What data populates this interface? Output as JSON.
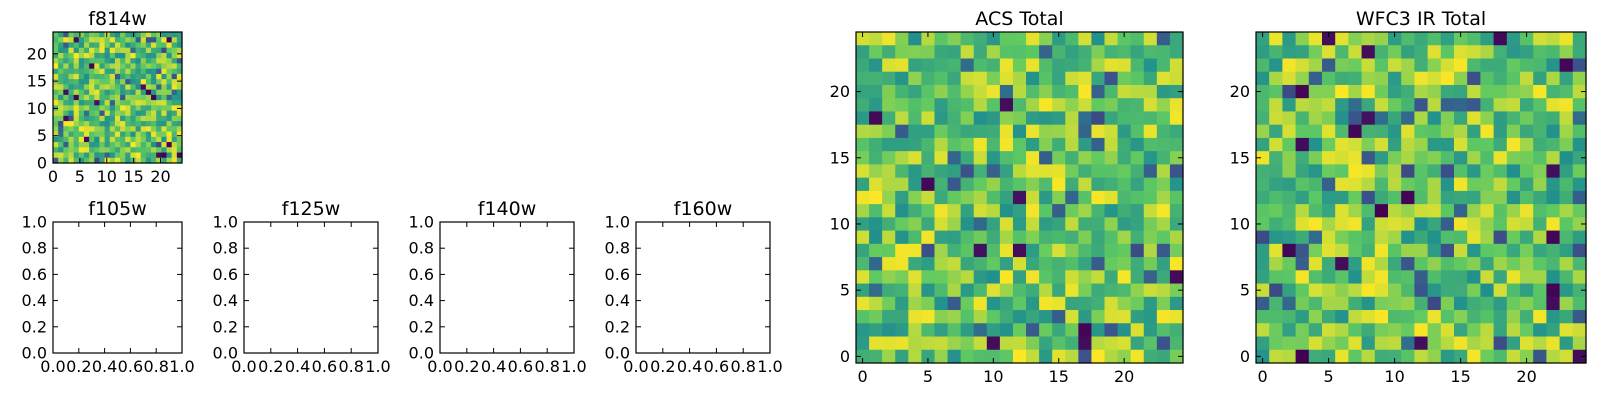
{
  "chart_data": [
    {
      "type": "heatmap",
      "title": "f814w",
      "grid_size": 25,
      "xlim": [
        0,
        24
      ],
      "ylim": [
        0,
        24
      ],
      "xticks": [
        "0",
        "5",
        "10",
        "15",
        "20"
      ],
      "yticks": [
        "0",
        "5",
        "10",
        "15",
        "20"
      ],
      "colormap": "viridis",
      "values": "random 25x25 pixel intensities (noise image)"
    },
    {
      "type": "empty",
      "title": "f105w",
      "xlim": [
        0.0,
        1.0
      ],
      "ylim": [
        0.0,
        1.0
      ],
      "xticks": [
        "0.0",
        "0.2",
        "0.4",
        "0.6",
        "0.8",
        "1.0"
      ],
      "yticks": [
        "0.0",
        "0.2",
        "0.4",
        "0.6",
        "0.8",
        "1.0"
      ]
    },
    {
      "type": "empty",
      "title": "f125w",
      "xlim": [
        0.0,
        1.0
      ],
      "ylim": [
        0.0,
        1.0
      ],
      "xticks": [
        "0.0",
        "0.2",
        "0.4",
        "0.6",
        "0.8",
        "1.0"
      ],
      "yticks": [
        "0.0",
        "0.2",
        "0.4",
        "0.6",
        "0.8",
        "1.0"
      ]
    },
    {
      "type": "empty",
      "title": "f140w",
      "xlim": [
        0.0,
        1.0
      ],
      "ylim": [
        0.0,
        1.0
      ],
      "xticks": [
        "0.0",
        "0.2",
        "0.4",
        "0.6",
        "0.8",
        "1.0"
      ],
      "yticks": [
        "0.0",
        "0.2",
        "0.4",
        "0.6",
        "0.8",
        "1.0"
      ]
    },
    {
      "type": "empty",
      "title": "f160w",
      "xlim": [
        0.0,
        1.0
      ],
      "ylim": [
        0.0,
        1.0
      ],
      "xticks": [
        "0.0",
        "0.2",
        "0.4",
        "0.6",
        "0.8",
        "1.0"
      ],
      "yticks": [
        "0.0",
        "0.2",
        "0.4",
        "0.6",
        "0.8",
        "1.0"
      ]
    },
    {
      "type": "heatmap",
      "title": "ACS Total",
      "grid_size": 25,
      "xlim": [
        -0.5,
        24.5
      ],
      "ylim": [
        -0.5,
        24.5
      ],
      "xticks": [
        "0",
        "5",
        "10",
        "15",
        "20"
      ],
      "yticks": [
        "0",
        "5",
        "10",
        "15",
        "20"
      ],
      "colormap": "viridis",
      "values": "random 25x25 pixel intensities (noise image)"
    },
    {
      "type": "heatmap",
      "title": "WFC3 IR Total",
      "grid_size": 25,
      "xlim": [
        -0.5,
        24.5
      ],
      "ylim": [
        -0.5,
        24.5
      ],
      "xticks": [
        "0",
        "5",
        "10",
        "15",
        "20"
      ],
      "yticks": [
        "0",
        "5",
        "10",
        "15",
        "20"
      ],
      "colormap": "viridis",
      "values": "random 25x25 pixel intensities (noise image)"
    }
  ],
  "colors": {
    "viridis": [
      "#440154",
      "#3b528b",
      "#21908d",
      "#5dc863",
      "#fde725"
    ],
    "axis": "#000000",
    "background": "#ffffff"
  }
}
